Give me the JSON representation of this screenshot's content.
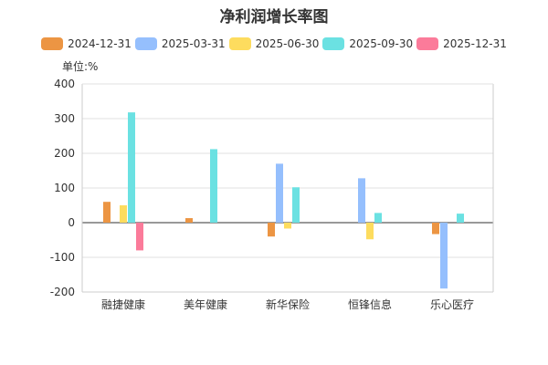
{
  "chart_data": {
    "type": "bar",
    "title": "净利润增长率图",
    "unit": "单位:%",
    "categories": [
      "融捷健康",
      "美年健康",
      "新华保险",
      "恒锋信息",
      "乐心医疗"
    ],
    "ylim": [
      -200,
      400
    ],
    "yticks": [
      400,
      300,
      200,
      100,
      0,
      -100,
      -200
    ],
    "series": [
      {
        "name": "2024-12-31",
        "color": "#ec9543",
        "values": [
          60,
          13,
          -40,
          null,
          -33
        ]
      },
      {
        "name": "2025-03-31",
        "color": "#95bffd",
        "values": [
          null,
          null,
          170,
          128,
          -190
        ]
      },
      {
        "name": "2025-06-30",
        "color": "#fddc5e",
        "values": [
          50,
          null,
          -17,
          -48,
          null
        ]
      },
      {
        "name": "2025-09-30",
        "color": "#6be1e2",
        "values": [
          318,
          212,
          102,
          28,
          26
        ]
      },
      {
        "name": "2025-12-31",
        "color": "#fb7b9a",
        "values": [
          -80,
          null,
          null,
          null,
          null
        ]
      }
    ]
  }
}
